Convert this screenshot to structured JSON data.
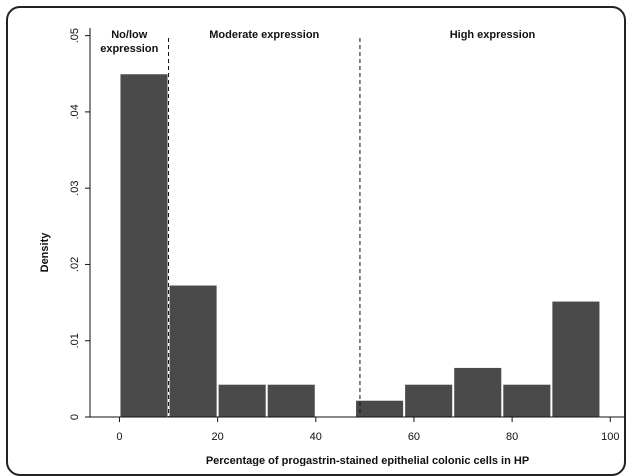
{
  "chart_data": {
    "type": "bar",
    "title": "",
    "xlabel": "Percentage of progastrin-stained epithelial colonic cells in HP",
    "ylabel": "Density",
    "xlim": [
      -6,
      103
    ],
    "ylim": [
      0,
      0.051
    ],
    "x_ticks": [
      0,
      20,
      40,
      60,
      80,
      100
    ],
    "y_ticks": [
      0,
      0.01,
      0.02,
      0.03,
      0.04,
      0.05
    ],
    "y_tick_labels": [
      "0",
      ".01",
      ".02",
      ".03",
      ".04",
      ".05"
    ],
    "bar_color": "#4a4a4a",
    "bins": [
      {
        "x0": 0,
        "x1": 10,
        "value": 0.045
      },
      {
        "x0": 10,
        "x1": 20,
        "value": 0.0173
      },
      {
        "x0": 20,
        "x1": 30,
        "value": 0.0043
      },
      {
        "x0": 30,
        "x1": 40,
        "value": 0.0043
      },
      {
        "x0": 48,
        "x1": 58,
        "value": 0.0022
      },
      {
        "x0": 58,
        "x1": 68,
        "value": 0.0043
      },
      {
        "x0": 68,
        "x1": 78,
        "value": 0.0065
      },
      {
        "x0": 78,
        "x1": 88,
        "value": 0.0043
      },
      {
        "x0": 88,
        "x1": 98,
        "value": 0.0152
      }
    ],
    "cutoffs": [
      10,
      49
    ],
    "regions": [
      {
        "label_lines": [
          "No/low",
          "expression"
        ],
        "x0": -6,
        "x1": 10
      },
      {
        "label_lines": [
          "Moderate expression"
        ],
        "x0": 10,
        "x1": 49
      },
      {
        "label_lines": [
          "High expression"
        ],
        "x0": 49,
        "x1": 103
      }
    ]
  }
}
